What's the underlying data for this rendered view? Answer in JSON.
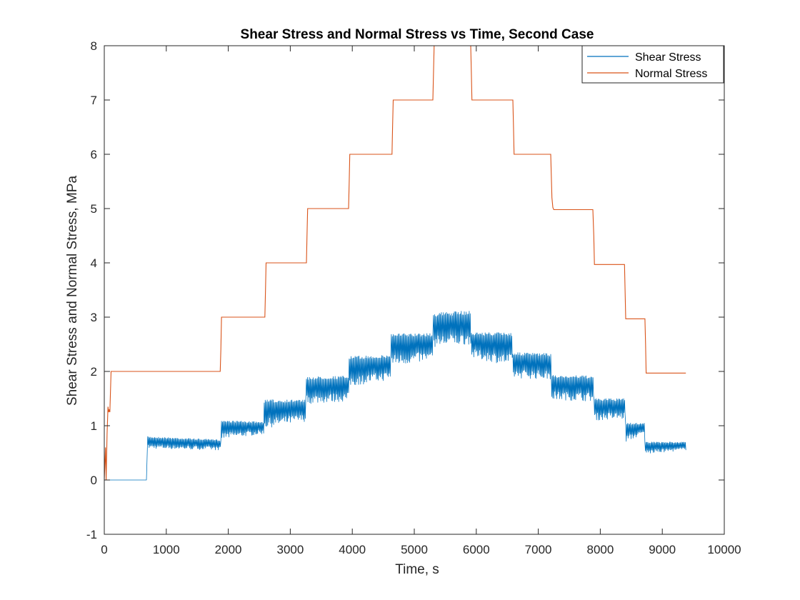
{
  "chart_data": {
    "type": "line",
    "title": "Shear Stress and Normal Stress vs Time, Second Case",
    "xlabel": "Time, s",
    "ylabel": "Shear Stress and Normal Stress, MPa",
    "xlim": [
      0,
      10000
    ],
    "ylim": [
      -1,
      8
    ],
    "xticks": [
      0,
      1000,
      2000,
      3000,
      4000,
      5000,
      6000,
      7000,
      8000,
      9000,
      10000
    ],
    "xtick_labels": [
      "0",
      "1000",
      "2000",
      "3000",
      "4000",
      "5000",
      "6000",
      "7000",
      "8000",
      "9000",
      "10000"
    ],
    "yticks": [
      -1,
      0,
      1,
      2,
      3,
      4,
      5,
      6,
      7,
      8
    ],
    "ytick_labels": [
      "-1",
      "0",
      "1",
      "2",
      "3",
      "4",
      "5",
      "6",
      "7",
      "8"
    ],
    "grid": false,
    "legend_position": "top-right",
    "series": [
      {
        "name": "Shear Stress",
        "color": "#0072bd",
        "segments": [
          {
            "x": [
              0,
              680
            ],
            "y_high": [
              0.0,
              0.0
            ],
            "y_low": [
              0.0,
              0.0
            ]
          },
          {
            "x": [
              700,
              1880
            ],
            "y_high": [
              0.8,
              0.74
            ],
            "y_low": [
              0.58,
              0.55
            ]
          },
          {
            "x": [
              1890,
              2570
            ],
            "y_high": [
              1.1,
              1.07
            ],
            "y_low": [
              0.75,
              0.85
            ]
          },
          {
            "x": [
              2580,
              3250
            ],
            "y_high": [
              1.48,
              1.48
            ],
            "y_low": [
              0.95,
              1.08
            ]
          },
          {
            "x": [
              3260,
              3940
            ],
            "y_high": [
              1.9,
              1.92
            ],
            "y_low": [
              1.4,
              1.45
            ]
          },
          {
            "x": [
              3950,
              4620
            ],
            "y_high": [
              2.28,
              2.3
            ],
            "y_low": [
              1.72,
              1.85
            ]
          },
          {
            "x": [
              4630,
              5300
            ],
            "y_high": [
              2.7,
              2.7
            ],
            "y_low": [
              2.1,
              2.2
            ]
          },
          {
            "x": [
              5310,
              5910
            ],
            "y_high": [
              3.08,
              3.12
            ],
            "y_low": [
              2.45,
              2.5
            ]
          },
          {
            "x": [
              5920,
              6580
            ],
            "y_high": [
              2.72,
              2.72
            ],
            "y_low": [
              2.25,
              2.1
            ]
          },
          {
            "x": [
              6590,
              7200
            ],
            "y_high": [
              2.35,
              2.33
            ],
            "y_low": [
              1.88,
              1.85
            ]
          },
          {
            "x": [
              7210,
              7890
            ],
            "y_high": [
              1.93,
              1.92
            ],
            "y_low": [
              1.48,
              1.45
            ]
          },
          {
            "x": [
              7900,
              8400
            ],
            "y_high": [
              1.5,
              1.5
            ],
            "y_low": [
              1.1,
              1.12
            ]
          },
          {
            "x": [
              8410,
              8710
            ],
            "y_high": [
              1.05,
              1.05
            ],
            "y_low": [
              0.7,
              0.85
            ]
          },
          {
            "x": [
              8720,
              9380
            ],
            "y_high": [
              0.7,
              0.7
            ],
            "y_low": [
              0.48,
              0.55
            ]
          }
        ]
      },
      {
        "name": "Normal Stress",
        "color": "#d95319",
        "x": [
          0,
          20,
          30,
          45,
          60,
          70,
          80,
          90,
          110,
          1870,
          1880,
          1890,
          2590,
          2600,
          2610,
          3260,
          3270,
          3280,
          3940,
          3950,
          3960,
          4640,
          4650,
          4660,
          5300,
          5310,
          5320,
          5910,
          5920,
          5930,
          6590,
          6600,
          6610,
          7200,
          7220,
          7235,
          7250,
          7880,
          7895,
          7905,
          8390,
          8400,
          8410,
          8720,
          8730,
          8740,
          9380
        ],
        "y": [
          0.0,
          0.6,
          0.0,
          0.85,
          1.35,
          1.25,
          1.3,
          1.25,
          2.0,
          2.0,
          2.4,
          3.0,
          3.0,
          3.5,
          4.0,
          4.0,
          4.5,
          5.0,
          5.0,
          5.5,
          6.0,
          6.0,
          6.5,
          7.0,
          7.0,
          7.5,
          8.0,
          8.0,
          7.5,
          7.0,
          7.0,
          6.5,
          6.0,
          6.0,
          5.2,
          5.02,
          4.98,
          4.98,
          4.5,
          3.97,
          3.97,
          3.5,
          2.97,
          2.97,
          2.5,
          1.97,
          1.97
        ]
      }
    ]
  }
}
